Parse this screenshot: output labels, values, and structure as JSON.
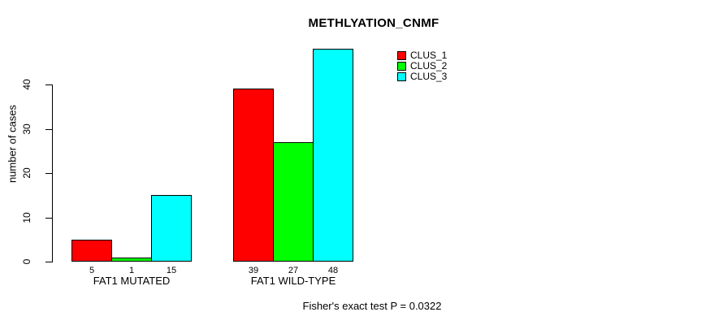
{
  "chart_data": {
    "type": "bar",
    "title": "METHLYATION_CNMF",
    "ylabel": "number of cases",
    "xlabel": "",
    "categories": [
      "FAT1 MUTATED",
      "FAT1 WILD-TYPE"
    ],
    "series": [
      {
        "name": "CLUS_1",
        "color": "#FF0000",
        "values": [
          5,
          39
        ]
      },
      {
        "name": "CLUS_2",
        "color": "#00FF00",
        "values": [
          1,
          27
        ]
      },
      {
        "name": "CLUS_3",
        "color": "#00FFFF",
        "values": [
          15,
          48
        ]
      }
    ],
    "yticks": [
      0,
      10,
      20,
      30,
      40
    ],
    "ylim": [
      0,
      48
    ],
    "grid": false,
    "bar_value_labels": true,
    "legend": {
      "entries": [
        "CLUS_1",
        "CLUS_2",
        "CLUS_3"
      ],
      "position": "inside-top-right"
    },
    "annotation": "Fisher's exact test P = 0.0322",
    "colors": {
      "background": "#FFFFFF",
      "axis": "#000000",
      "text": "#000000"
    }
  }
}
